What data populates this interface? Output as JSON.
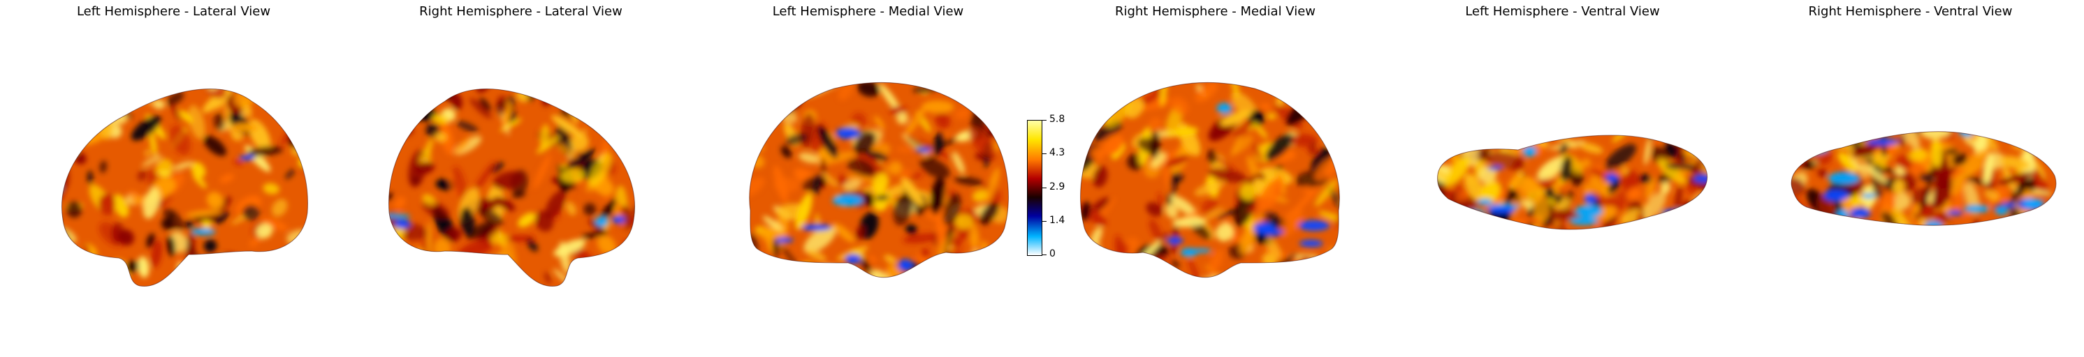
{
  "panels": [
    {
      "title": "Left Hemisphere - Lateral View"
    },
    {
      "title": "Right Hemisphere - Lateral View"
    },
    {
      "title": "Left Hemisphere - Medial View"
    },
    {
      "title": "Right Hemisphere - Medial View"
    },
    {
      "title": "Left Hemisphere - Ventral View"
    },
    {
      "title": "Right Hemisphere - Ventral View"
    }
  ],
  "colorbar": {
    "ticks": [
      "5.8",
      "4.3",
      "2.9",
      "1.4",
      "0"
    ],
    "colors": [
      "#ffffff",
      "#00b4ff",
      "#0000a0",
      "#1a0000",
      "#b40000",
      "#ff7a00",
      "#ffe600",
      "#ffffa8"
    ]
  }
}
